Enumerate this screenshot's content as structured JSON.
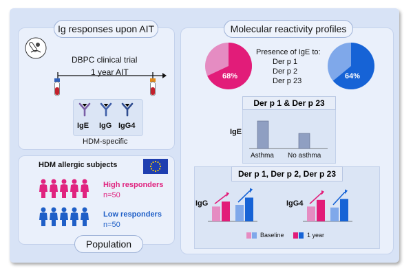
{
  "left_top": {
    "title": "Ig responses upon AIT",
    "trial_line1": "DBPC clinical trial",
    "trial_line2": "1 year AIT",
    "antibodies": [
      "IgE",
      "IgG",
      "IgG4"
    ],
    "antibody_colors": [
      "#7a5fa6",
      "#3f5fa8",
      "#2f4c8f"
    ],
    "caption": "HDM-specific"
  },
  "left_bottom": {
    "title": "HDM allergic subjects",
    "high_label": "High responders",
    "high_n": "n=50",
    "high_color": "#e0237f",
    "low_label": "Low responders",
    "low_n": "n=50",
    "low_color": "#1f5fc7",
    "footer": "Population",
    "flag_icon": "eu-flag-icon"
  },
  "right": {
    "title": "Molecular reactivity profiles",
    "presence": {
      "heading": "Presence of IgE to:",
      "items": [
        "Der p 1",
        "Der p 2",
        "Der p 23"
      ]
    },
    "pie_left": {
      "value": 68,
      "label": "68%",
      "color": "#e21c79",
      "light": "#e58cc2"
    },
    "pie_right": {
      "value": 64,
      "label": "64%",
      "color": "#1663d6",
      "light": "#7fa8ea"
    },
    "ige_panel": {
      "title": "Der p 1 & Der p 23",
      "ylabel": "IgE",
      "categories": [
        "Asthma",
        "No asthma"
      ],
      "values": [
        1.0,
        0.55
      ]
    },
    "igg_panel": {
      "title": "Der p 1, Der p 2, Der p 23",
      "charts": [
        {
          "ylabel": "IgG",
          "values": [
            0.45,
            0.6,
            0.5,
            0.72
          ]
        },
        {
          "ylabel": "IgG4",
          "values": [
            0.45,
            0.65,
            0.42,
            0.68
          ]
        }
      ],
      "legend": [
        "Baseline",
        "1 year"
      ]
    }
  }
}
